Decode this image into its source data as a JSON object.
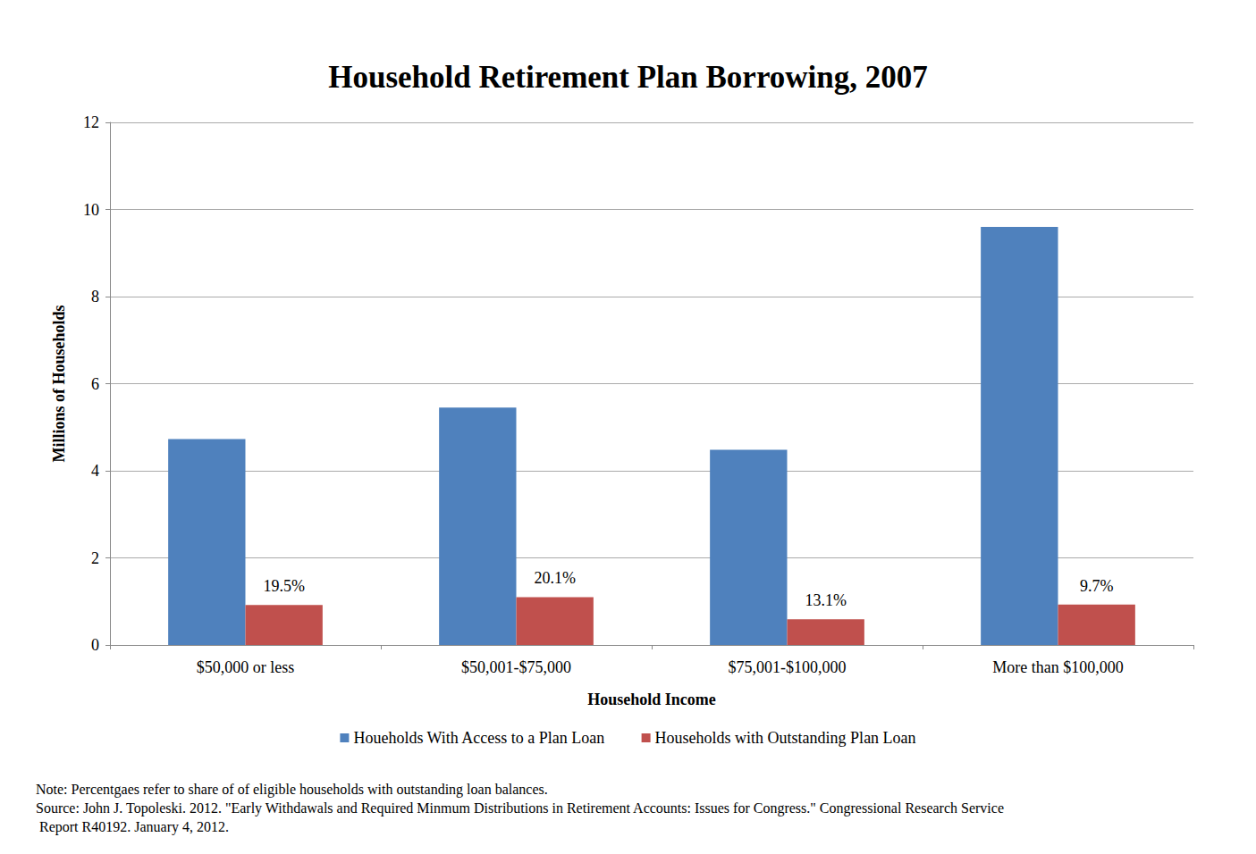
{
  "chart_data": {
    "type": "bar",
    "title": "Household Retirement Plan Borrowing, 2007",
    "x_label": "Household Income",
    "y_label": "Millions of Households",
    "categories": [
      "$50,000 or less",
      "$50,001-$75,000",
      "$75,001-$100,000",
      "More than $100,000"
    ],
    "series": [
      {
        "name": "Houeholds With Access to a Plan Loan",
        "color": "#4f81bd",
        "values": [
          4.73,
          5.45,
          4.48,
          9.6
        ]
      },
      {
        "name": "Households with Outstanding Plan Loan",
        "color": "#c0504d",
        "values": [
          0.92,
          1.1,
          0.59,
          0.93
        ],
        "annotations": [
          "19.5%",
          "20.1%",
          "13.1%",
          "9.7%"
        ]
      }
    ],
    "ylim": [
      0,
      12
    ],
    "yticks": [
      0,
      2,
      4,
      6,
      8,
      10,
      12
    ],
    "grid": true,
    "legend": "bottom",
    "notes": [
      "Note: Percentgaes refer to share of of eligible households with outstanding loan balances.",
      "Source: John J. Topoleski. 2012. \"Early Withdawals and Required Minmum Distributions in Retirement Accounts: Issues for Congress.\" Congressional Research Service",
      " Report R40192. January 4, 2012."
    ]
  }
}
